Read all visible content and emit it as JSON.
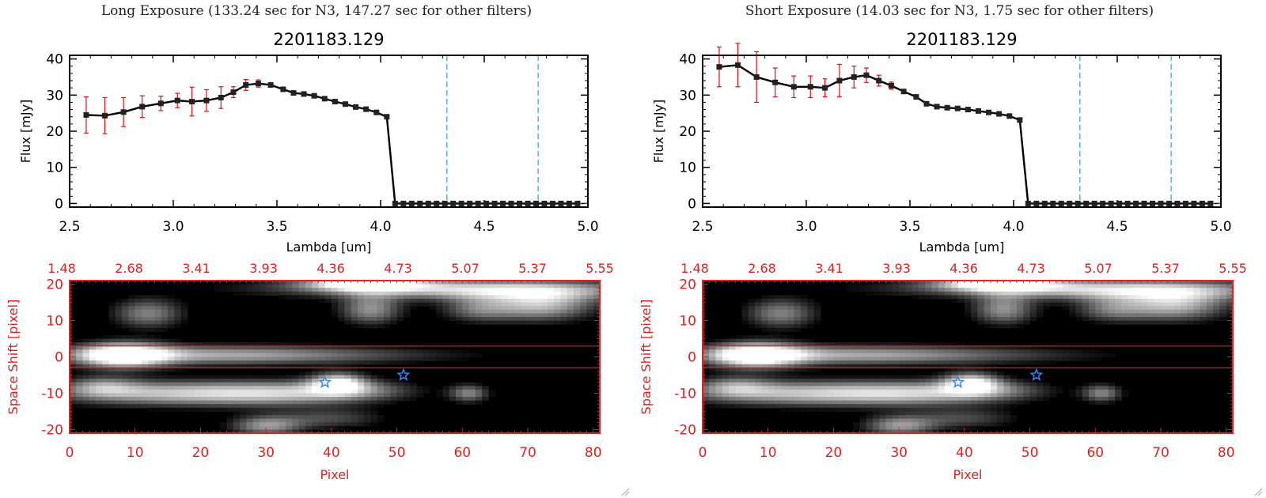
{
  "colors": {
    "axis": "#000000",
    "error": "#dd1111",
    "marker": "#222222",
    "vline": "#3399dd",
    "image_axis": "#dd2222",
    "star": "#3388ee",
    "box": "#cc2222"
  },
  "panels": [
    {
      "title": "Long Exposure (133.24 sec for N3, 147.27 sec for other filters)"
    },
    {
      "title": "Short Exposure (14.03 sec for N3, 1.75 sec for other filters)"
    }
  ],
  "chart_data": [
    {
      "type": "line",
      "title": "2201183.129",
      "xlabel": "Lambda [um]",
      "ylabel": "Flux [mJy]",
      "xlim": [
        2.5,
        5.0
      ],
      "ylim": [
        -1,
        41
      ],
      "xticks": [
        "2.5",
        "3.0",
        "3.5",
        "4.0",
        "4.5",
        "5.0"
      ],
      "yticks": [
        "0",
        "10",
        "20",
        "30",
        "40"
      ],
      "vlines": [
        4.32,
        4.76
      ],
      "x": [
        2.58,
        2.67,
        2.76,
        2.85,
        2.94,
        3.02,
        3.09,
        3.16,
        3.23,
        3.29,
        3.35,
        3.41,
        3.47,
        3.53,
        3.58,
        3.63,
        3.68,
        3.73,
        3.78,
        3.83,
        3.88,
        3.93,
        3.98,
        4.03,
        4.07,
        4.11,
        4.15,
        4.19,
        4.23,
        4.27,
        4.31,
        4.35,
        4.39,
        4.43,
        4.47,
        4.51,
        4.55,
        4.59,
        4.63,
        4.67,
        4.71,
        4.75,
        4.79,
        4.83,
        4.87,
        4.91,
        4.95
      ],
      "y": [
        24.5,
        24.3,
        25.3,
        26.8,
        27.7,
        28.5,
        28.2,
        28.5,
        29.3,
        30.8,
        32.8,
        33.2,
        32.8,
        31.6,
        30.6,
        30.3,
        29.8,
        29.0,
        28.2,
        27.5,
        26.7,
        26.1,
        25.2,
        24.0,
        0,
        0,
        0,
        0,
        0,
        0,
        0,
        0,
        0,
        0,
        0,
        0,
        0,
        0,
        0,
        0,
        0,
        0,
        0,
        0,
        0,
        0,
        0
      ],
      "err": [
        5.0,
        5.0,
        4.0,
        3.0,
        2.0,
        2.0,
        4.0,
        3.0,
        3.0,
        1.5,
        1.5,
        1.0,
        0.5,
        0.5,
        0.5,
        0.5,
        0.5,
        0.5,
        0.5,
        0.5,
        0.5,
        0.5,
        0.5,
        0.5,
        0,
        0,
        0,
        0,
        0,
        0,
        0,
        0,
        0,
        0,
        0,
        0,
        0,
        0,
        0,
        0,
        0,
        0,
        0,
        0,
        0,
        0,
        0
      ]
    },
    {
      "type": "line",
      "title": "2201183.129",
      "xlabel": "Lambda [um]",
      "ylabel": "Flux [mJy]",
      "xlim": [
        2.5,
        5.0
      ],
      "ylim": [
        -1,
        41
      ],
      "xticks": [
        "2.5",
        "3.0",
        "3.5",
        "4.0",
        "4.5",
        "5.0"
      ],
      "yticks": [
        "0",
        "10",
        "20",
        "30",
        "40"
      ],
      "vlines": [
        4.32,
        4.76
      ],
      "x": [
        2.58,
        2.67,
        2.76,
        2.85,
        2.94,
        3.02,
        3.09,
        3.16,
        3.23,
        3.29,
        3.35,
        3.41,
        3.47,
        3.53,
        3.58,
        3.63,
        3.68,
        3.73,
        3.78,
        3.83,
        3.88,
        3.93,
        3.98,
        4.03,
        4.07,
        4.11,
        4.15,
        4.19,
        4.23,
        4.27,
        4.31,
        4.35,
        4.39,
        4.43,
        4.47,
        4.51,
        4.55,
        4.59,
        4.63,
        4.67,
        4.71,
        4.75,
        4.79,
        4.83,
        4.87,
        4.91,
        4.95
      ],
      "y": [
        37.8,
        38.3,
        35.0,
        33.5,
        32.3,
        32.3,
        32.0,
        34.0,
        35.0,
        35.5,
        34.0,
        32.6,
        31.0,
        29.5,
        27.6,
        26.8,
        26.5,
        26.3,
        26.0,
        25.6,
        25.2,
        24.8,
        24.2,
        23.1,
        0,
        0,
        0,
        0,
        0,
        0,
        0,
        0,
        0,
        0,
        0,
        0,
        0,
        0,
        0,
        0,
        0,
        0,
        0,
        0,
        0,
        0,
        0
      ],
      "err": [
        5.5,
        6.0,
        7.0,
        4.0,
        3.0,
        3.0,
        2.5,
        4.5,
        3.0,
        2.0,
        1.5,
        1.0,
        0.5,
        0.5,
        0.5,
        0.5,
        0.5,
        0.5,
        0.5,
        0.5,
        0.5,
        0.5,
        0.5,
        0.5,
        0,
        0,
        0,
        0,
        0,
        0,
        0,
        0,
        0,
        0,
        0,
        0,
        0,
        0,
        0,
        0,
        0,
        0,
        0,
        0,
        0,
        0,
        0
      ]
    },
    {
      "type": "heatmap",
      "xlabel": "Pixel",
      "ylabel": "Space Shift [pixel]",
      "xlim": [
        0,
        81
      ],
      "ylim": [
        -21,
        21
      ],
      "xticks": [
        "0",
        "10",
        "20",
        "30",
        "40",
        "50",
        "60",
        "70",
        "80"
      ],
      "yticks": [
        "-20",
        "-10",
        "0",
        "10",
        "20"
      ],
      "top_ticks": [
        "1.48",
        "2.68",
        "3.41",
        "3.93",
        "4.36",
        "4.73",
        "5.07",
        "5.37",
        "5.55"
      ],
      "box_y": [
        3,
        -3
      ],
      "stars": [
        {
          "x": 39,
          "y": -7
        },
        {
          "x": 51,
          "y": -5
        }
      ]
    },
    {
      "type": "heatmap",
      "xlabel": "Pixel",
      "ylabel": "Space Shift [pixel]",
      "xlim": [
        0,
        81
      ],
      "ylim": [
        -21,
        21
      ],
      "xticks": [
        "0",
        "10",
        "20",
        "30",
        "40",
        "50",
        "60",
        "70",
        "80"
      ],
      "yticks": [
        "-20",
        "-10",
        "0",
        "10",
        "20"
      ],
      "top_ticks": [
        "1.48",
        "2.68",
        "3.41",
        "3.93",
        "4.36",
        "4.73",
        "5.07",
        "5.37",
        "5.55"
      ],
      "box_y": [
        3,
        -3
      ],
      "stars": [
        {
          "x": 39,
          "y": -7
        },
        {
          "x": 51,
          "y": -5
        }
      ]
    }
  ]
}
